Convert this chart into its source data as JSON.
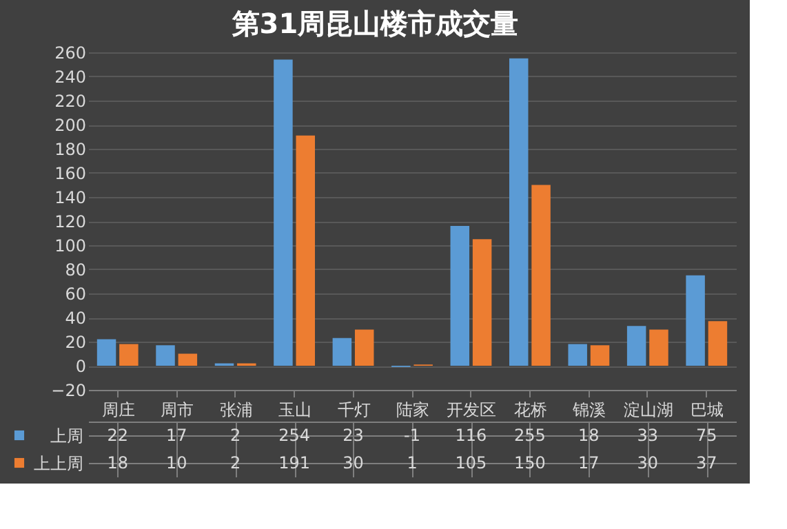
{
  "chart_data": {
    "type": "bar",
    "title": "第31周昆山楼市成交量",
    "categories": [
      "周庄",
      "周市",
      "张浦",
      "玉山",
      "千灯",
      "陆家",
      "开发区",
      "花桥",
      "锦溪",
      "淀山湖",
      "巴城"
    ],
    "series": [
      {
        "name": "上周",
        "color": "#5b9bd5",
        "values": [
          22,
          17,
          2,
          254,
          23,
          -1,
          116,
          255,
          18,
          33,
          75
        ]
      },
      {
        "name": "上上周",
        "color": "#ed7d31",
        "values": [
          18,
          10,
          2,
          191,
          30,
          1,
          105,
          150,
          17,
          30,
          37
        ]
      }
    ],
    "ylim": [
      -20,
      260
    ],
    "yticks": [
      -20,
      0,
      20,
      40,
      60,
      80,
      100,
      120,
      140,
      160,
      180,
      200,
      220,
      240,
      260
    ],
    "grid": "y",
    "data_labels": true,
    "legend": "bottom"
  }
}
